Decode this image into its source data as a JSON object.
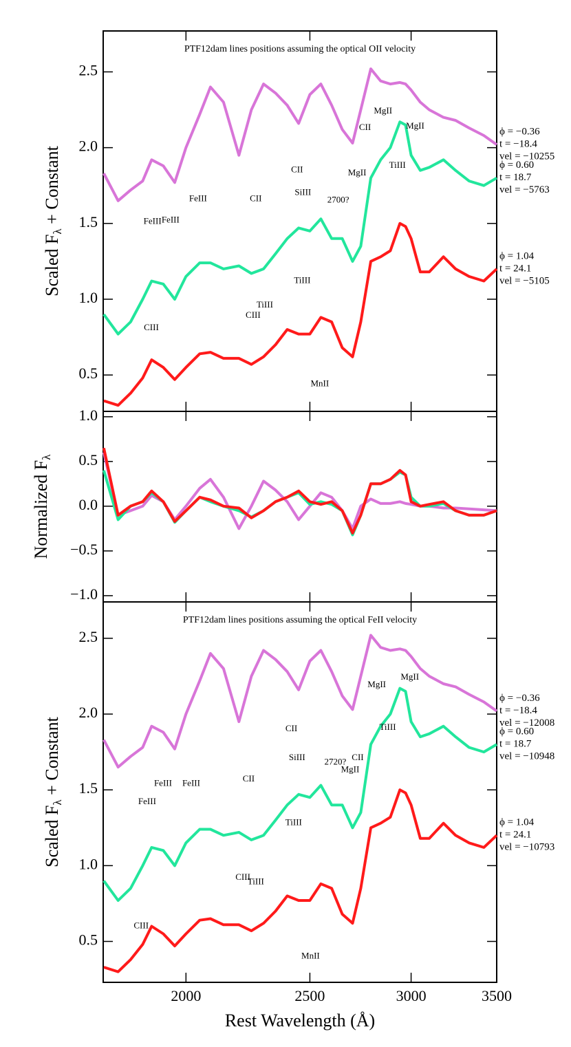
{
  "chart_data": [
    {
      "type": "line",
      "title": "PTF12dam lines positions assuming the optical OII velocity",
      "ylabel": {
        "prefix": "Scaled F",
        "sub": "λ",
        "suffix": " + Constant"
      },
      "xscale": "log",
      "xlim": [
        1723,
        3500
      ],
      "xticks": [
        2000,
        2500,
        3000,
        3500
      ],
      "xticklabels": false,
      "ylim": [
        0.26,
        2.77
      ],
      "yticks": [
        0.5,
        {
          "value": 1,
          "label": "1.0"
        },
        1.5,
        {
          "value": 2,
          "label": "2.0"
        },
        2.5
      ],
      "x": [
        1725,
        1770,
        1810,
        1850,
        1880,
        1920,
        1960,
        2000,
        2050,
        2090,
        2140,
        2200,
        2250,
        2300,
        2350,
        2400,
        2450,
        2500,
        2550,
        2600,
        2650,
        2700,
        2740,
        2790,
        2840,
        2890,
        2940,
        2970,
        3000,
        3050,
        3100,
        3180,
        3250,
        3330,
        3420,
        3500
      ],
      "series": [
        {
          "phase": "ϕ = −0.36",
          "epoch": "t = −18.4",
          "velocity": "vel = −10255",
          "color": "#d875d8",
          "values": [
            1.83,
            1.65,
            1.72,
            1.78,
            1.92,
            1.88,
            1.77,
            2.0,
            2.22,
            2.4,
            2.3,
            1.95,
            2.25,
            2.42,
            2.36,
            2.28,
            2.16,
            2.35,
            2.42,
            2.28,
            2.12,
            2.03,
            2.25,
            2.52,
            2.44,
            2.42,
            2.43,
            2.42,
            2.38,
            2.3,
            2.25,
            2.2,
            2.18,
            2.13,
            2.08,
            2.02
          ]
        },
        {
          "phase": "ϕ = 0.60",
          "epoch": "t = 18.7",
          "velocity": "vel = −5763",
          "color": "#22e69c",
          "values": [
            0.9,
            0.77,
            0.85,
            1.0,
            1.12,
            1.1,
            1.0,
            1.15,
            1.24,
            1.24,
            1.2,
            1.22,
            1.17,
            1.2,
            1.3,
            1.4,
            1.47,
            1.45,
            1.53,
            1.4,
            1.4,
            1.25,
            1.35,
            1.8,
            1.92,
            2.0,
            2.17,
            2.15,
            1.95,
            1.85,
            1.87,
            1.92,
            1.85,
            1.78,
            1.75,
            1.8
          ]
        },
        {
          "phase": "ϕ = 1.04",
          "epoch": "t = 24.1",
          "velocity": "vel = −5105",
          "color": "#ff1a1a",
          "values": [
            0.33,
            0.3,
            0.38,
            0.48,
            0.6,
            0.55,
            0.47,
            0.55,
            0.64,
            0.65,
            0.61,
            0.61,
            0.57,
            0.62,
            0.7,
            0.8,
            0.77,
            0.77,
            0.88,
            0.85,
            0.68,
            0.62,
            0.85,
            1.25,
            1.28,
            1.32,
            1.5,
            1.48,
            1.4,
            1.18,
            1.18,
            1.28,
            1.2,
            1.15,
            1.12,
            1.2
          ]
        }
      ],
      "annotations": [
        {
          "text": "FeIII",
          "x": 1883,
          "y": 1.51
        },
        {
          "text": "FeIII",
          "x": 1945,
          "y": 1.52
        },
        {
          "text": "FeIII",
          "x": 2044,
          "y": 1.66
        },
        {
          "text": "CII",
          "x": 2268,
          "y": 1.66
        },
        {
          "text": "CII",
          "x": 2443,
          "y": 1.85
        },
        {
          "text": "SiIII",
          "x": 2469,
          "y": 1.7
        },
        {
          "text": "2700?",
          "x": 2631,
          "y": 1.65
        },
        {
          "text": "MgII",
          "x": 2722,
          "y": 1.83
        },
        {
          "text": "CII",
          "x": 2761,
          "y": 2.13
        },
        {
          "text": "MgII",
          "x": 2852,
          "y": 2.24
        },
        {
          "text": "MgII",
          "x": 3022,
          "y": 2.14
        },
        {
          "text": "TiIII",
          "x": 2927,
          "y": 1.88
        },
        {
          "text": "TiIII",
          "x": 2466,
          "y": 1.12
        },
        {
          "text": "TiIII",
          "x": 2305,
          "y": 0.96
        },
        {
          "text": "CIII",
          "x": 2257,
          "y": 0.89
        },
        {
          "text": "CIII",
          "x": 1879,
          "y": 0.81
        },
        {
          "text": "MnII",
          "x": 2545,
          "y": 0.44
        }
      ]
    },
    {
      "type": "line",
      "ylabel": {
        "prefix": "Normalized F",
        "sub": "λ",
        "suffix": ""
      },
      "xscale": "log",
      "xlim": [
        1723,
        3500
      ],
      "xticks": [
        2000,
        2500,
        3000,
        3500
      ],
      "xticklabels": false,
      "ylim": [
        -1.07,
        1.06
      ],
      "yticks": [
        {
          "value": -1,
          "label": "−1.0"
        },
        {
          "value": -0.5,
          "label": "−0.5"
        },
        {
          "value": 0,
          "label": "0.0"
        },
        0.5,
        {
          "value": 1,
          "label": "1.0"
        }
      ],
      "x": [
        1725,
        1770,
        1810,
        1850,
        1880,
        1920,
        1960,
        2000,
        2050,
        2090,
        2140,
        2200,
        2250,
        2300,
        2350,
        2400,
        2450,
        2500,
        2550,
        2600,
        2650,
        2700,
        2740,
        2790,
        2840,
        2890,
        2940,
        2970,
        3000,
        3050,
        3100,
        3180,
        3250,
        3330,
        3420,
        3500
      ],
      "series": [
        {
          "color": "#d875d8",
          "values": [
            0.6,
            -0.1,
            -0.05,
            0.0,
            0.12,
            0.05,
            -0.15,
            0.0,
            0.2,
            0.3,
            0.1,
            -0.25,
            0.0,
            0.28,
            0.18,
            0.05,
            -0.15,
            0.0,
            0.15,
            0.1,
            -0.05,
            -0.25,
            0.0,
            0.08,
            0.03,
            0.03,
            0.05,
            0.03,
            0.02,
            0.0,
            0.0,
            -0.02,
            -0.02,
            -0.03,
            -0.04,
            -0.05
          ]
        },
        {
          "color": "#22e69c",
          "values": [
            0.4,
            -0.15,
            0.0,
            0.05,
            0.15,
            0.05,
            -0.18,
            -0.05,
            0.1,
            0.05,
            0.0,
            -0.05,
            -0.12,
            -0.05,
            0.05,
            0.1,
            0.15,
            0.02,
            0.05,
            0.02,
            -0.05,
            -0.32,
            -0.1,
            0.25,
            0.25,
            0.3,
            0.38,
            0.35,
            0.1,
            0.0,
            0.0,
            0.03,
            -0.05,
            -0.1,
            -0.1,
            -0.05
          ]
        },
        {
          "color": "#ff1a1a",
          "values": [
            0.65,
            -0.1,
            0.0,
            0.05,
            0.17,
            0.05,
            -0.17,
            -0.05,
            0.1,
            0.07,
            0.0,
            -0.02,
            -0.13,
            -0.05,
            0.05,
            0.1,
            0.17,
            0.05,
            0.02,
            0.05,
            -0.05,
            -0.3,
            -0.1,
            0.25,
            0.25,
            0.3,
            0.4,
            0.35,
            0.05,
            0.0,
            0.02,
            0.05,
            -0.05,
            -0.1,
            -0.1,
            -0.05
          ]
        }
      ]
    },
    {
      "type": "line",
      "title": "PTF12dam lines positions assuming the optical FeII velocity",
      "ylabel": {
        "prefix": "Scaled F",
        "sub": "λ",
        "suffix": " + Constant"
      },
      "xlabel": "Rest Wavelength (Å)",
      "xscale": "log",
      "xlim": [
        1723,
        3500
      ],
      "xticks": [
        2000,
        2500,
        3000,
        3500
      ],
      "xticklabels": true,
      "ylim": [
        0.23,
        2.74
      ],
      "yticks": [
        0.5,
        {
          "value": 1,
          "label": "1.0"
        },
        1.5,
        {
          "value": 2,
          "label": "2.0"
        },
        2.5
      ],
      "x": [
        1725,
        1770,
        1810,
        1850,
        1880,
        1920,
        1960,
        2000,
        2050,
        2090,
        2140,
        2200,
        2250,
        2300,
        2350,
        2400,
        2450,
        2500,
        2550,
        2600,
        2650,
        2700,
        2740,
        2790,
        2840,
        2890,
        2940,
        2970,
        3000,
        3050,
        3100,
        3180,
        3250,
        3330,
        3420,
        3500
      ],
      "series": [
        {
          "phase": "ϕ = −0.36",
          "epoch": "t = −18.4",
          "velocity": "vel = −12008",
          "color": "#d875d8",
          "values": [
            1.83,
            1.65,
            1.72,
            1.78,
            1.92,
            1.88,
            1.77,
            2.0,
            2.22,
            2.4,
            2.3,
            1.95,
            2.25,
            2.42,
            2.36,
            2.28,
            2.16,
            2.35,
            2.42,
            2.28,
            2.12,
            2.03,
            2.25,
            2.52,
            2.44,
            2.42,
            2.43,
            2.42,
            2.38,
            2.3,
            2.25,
            2.2,
            2.18,
            2.13,
            2.08,
            2.02
          ]
        },
        {
          "phase": "ϕ = 0.60",
          "epoch": "t = 18.7",
          "velocity": "vel = −10948",
          "color": "#22e69c",
          "values": [
            0.9,
            0.77,
            0.85,
            1.0,
            1.12,
            1.1,
            1.0,
            1.15,
            1.24,
            1.24,
            1.2,
            1.22,
            1.17,
            1.2,
            1.3,
            1.4,
            1.47,
            1.45,
            1.53,
            1.4,
            1.4,
            1.25,
            1.35,
            1.8,
            1.92,
            2.0,
            2.17,
            2.15,
            1.95,
            1.85,
            1.87,
            1.92,
            1.85,
            1.78,
            1.75,
            1.8
          ]
        },
        {
          "phase": "ϕ = 1.04",
          "epoch": "t = 24.1",
          "velocity": "vel = −10793",
          "color": "#ff1a1a",
          "values": [
            0.33,
            0.3,
            0.38,
            0.48,
            0.6,
            0.55,
            0.47,
            0.55,
            0.64,
            0.65,
            0.61,
            0.61,
            0.57,
            0.62,
            0.7,
            0.8,
            0.77,
            0.77,
            0.88,
            0.85,
            0.68,
            0.62,
            0.85,
            1.25,
            1.28,
            1.32,
            1.5,
            1.48,
            1.4,
            1.18,
            1.18,
            1.28,
            1.2,
            1.15,
            1.12,
            1.2
          ]
        }
      ],
      "annotations": [
        {
          "text": "FeIII",
          "x": 1919,
          "y": 1.54
        },
        {
          "text": "FeIII",
          "x": 2019,
          "y": 1.54
        },
        {
          "text": "FeIII",
          "x": 1865,
          "y": 1.42
        },
        {
          "text": "CII",
          "x": 2239,
          "y": 1.57
        },
        {
          "text": "CII",
          "x": 2418,
          "y": 1.9
        },
        {
          "text": "SiIII",
          "x": 2443,
          "y": 1.71
        },
        {
          "text": "2720?",
          "x": 2617,
          "y": 1.68
        },
        {
          "text": "CII",
          "x": 2725,
          "y": 1.71
        },
        {
          "text": "MgII",
          "x": 2688,
          "y": 1.63
        },
        {
          "text": "MgII",
          "x": 2820,
          "y": 2.19
        },
        {
          "text": "MgII",
          "x": 2993,
          "y": 2.24
        },
        {
          "text": "TiIII",
          "x": 2876,
          "y": 1.91
        },
        {
          "text": "TiIII",
          "x": 2428,
          "y": 1.28
        },
        {
          "text": "TiIII",
          "x": 2268,
          "y": 0.89
        },
        {
          "text": "CIII",
          "x": 2216,
          "y": 0.92
        },
        {
          "text": "CIII",
          "x": 1845,
          "y": 0.6
        },
        {
          "text": "MnII",
          "x": 2503,
          "y": 0.4
        }
      ]
    }
  ]
}
